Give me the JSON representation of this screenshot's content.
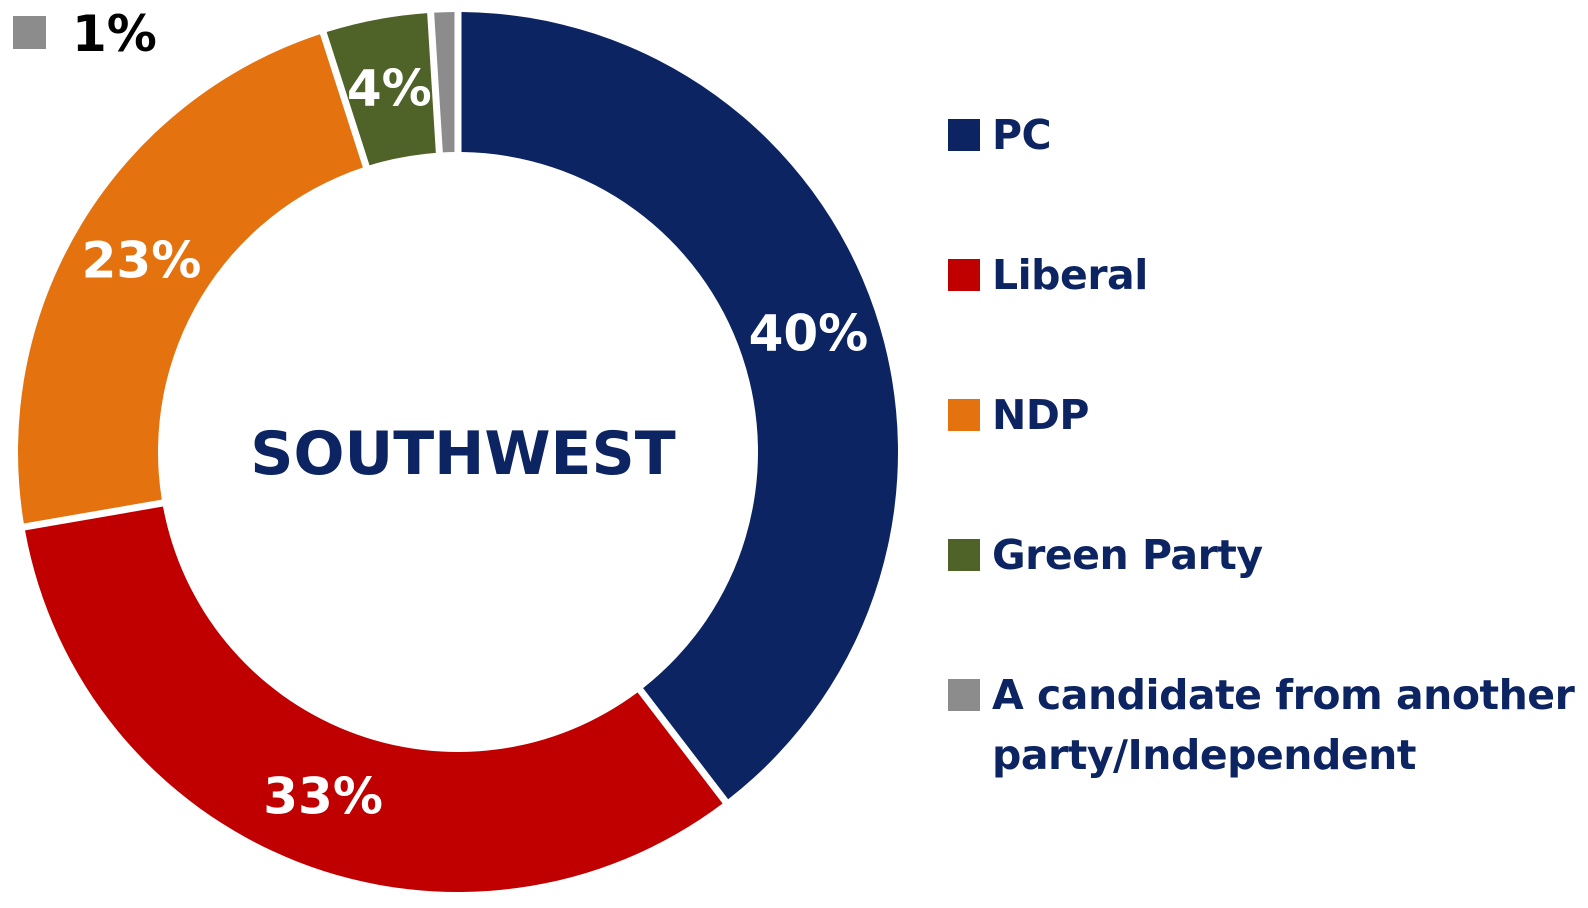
{
  "chart_data": {
    "type": "pie",
    "title": "SOUTHWEST",
    "categories": [
      "PC",
      "Liberal",
      "NDP",
      "Green Party",
      "A candidate from another party/Independent"
    ],
    "values": [
      40,
      33,
      23,
      4,
      1
    ],
    "value_labels": [
      "40%",
      "33%",
      "23%",
      "4%",
      "1%"
    ],
    "colors": [
      "#0c2461",
      "#c00000",
      "#e4720f",
      "#4f6228",
      "#8c8c8c"
    ],
    "legend": {
      "placement": "right",
      "entries": [
        "PC",
        "Liberal",
        "NDP",
        "Green Party",
        "A candidate from another party/Independent"
      ]
    }
  }
}
